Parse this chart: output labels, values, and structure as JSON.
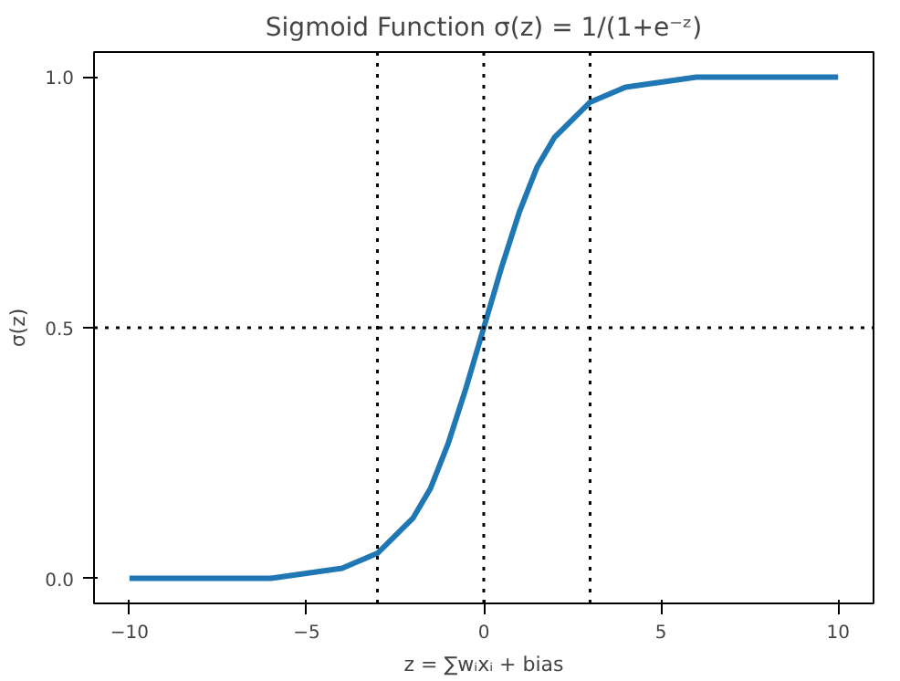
{
  "chart_data": {
    "type": "line",
    "title": "Sigmoid Function σ(z) = 1/(1+e⁻ᶻ)",
    "xlabel": "z = ∑wᵢxᵢ + bias",
    "ylabel": "σ(z)",
    "x": [
      -10,
      -8,
      -6,
      -5,
      -4,
      -3,
      -2,
      -1.5,
      -1,
      -0.5,
      0,
      0.5,
      1,
      1.5,
      2,
      3,
      4,
      5,
      6,
      8,
      10
    ],
    "series": [
      {
        "color": "#1f77b4",
        "values": [
          0.0,
          0.0,
          0.0,
          0.01,
          0.02,
          0.05,
          0.12,
          0.18,
          0.27,
          0.38,
          0.5,
          0.62,
          0.73,
          0.82,
          0.88,
          0.95,
          0.98,
          0.99,
          1.0,
          1.0,
          1.0
        ]
      }
    ],
    "xlim": [
      -11,
      11
    ],
    "ylim": [
      -0.05,
      1.05
    ],
    "xticks": [
      -10,
      -5,
      0,
      5,
      10
    ],
    "yticks": [
      {
        "value": 0,
        "label": "0.0"
      },
      {
        "value": 0.5,
        "label": "0.5"
      },
      {
        "value": 1,
        "label": "1.0"
      }
    ],
    "ref_lines": [
      {
        "axis": "x",
        "value": -3,
        "color": "#000000",
        "line_style": "dotted"
      },
      {
        "axis": "x",
        "value": 0,
        "color": "#000000",
        "line_style": "dotted"
      },
      {
        "axis": "x",
        "value": 3,
        "color": "#000000",
        "line_style": "dotted"
      },
      {
        "axis": "y",
        "value": 0.5,
        "color": "#000000",
        "line_style": "dotted"
      }
    ],
    "grid": false,
    "marker": "none",
    "line_style": "solid"
  }
}
